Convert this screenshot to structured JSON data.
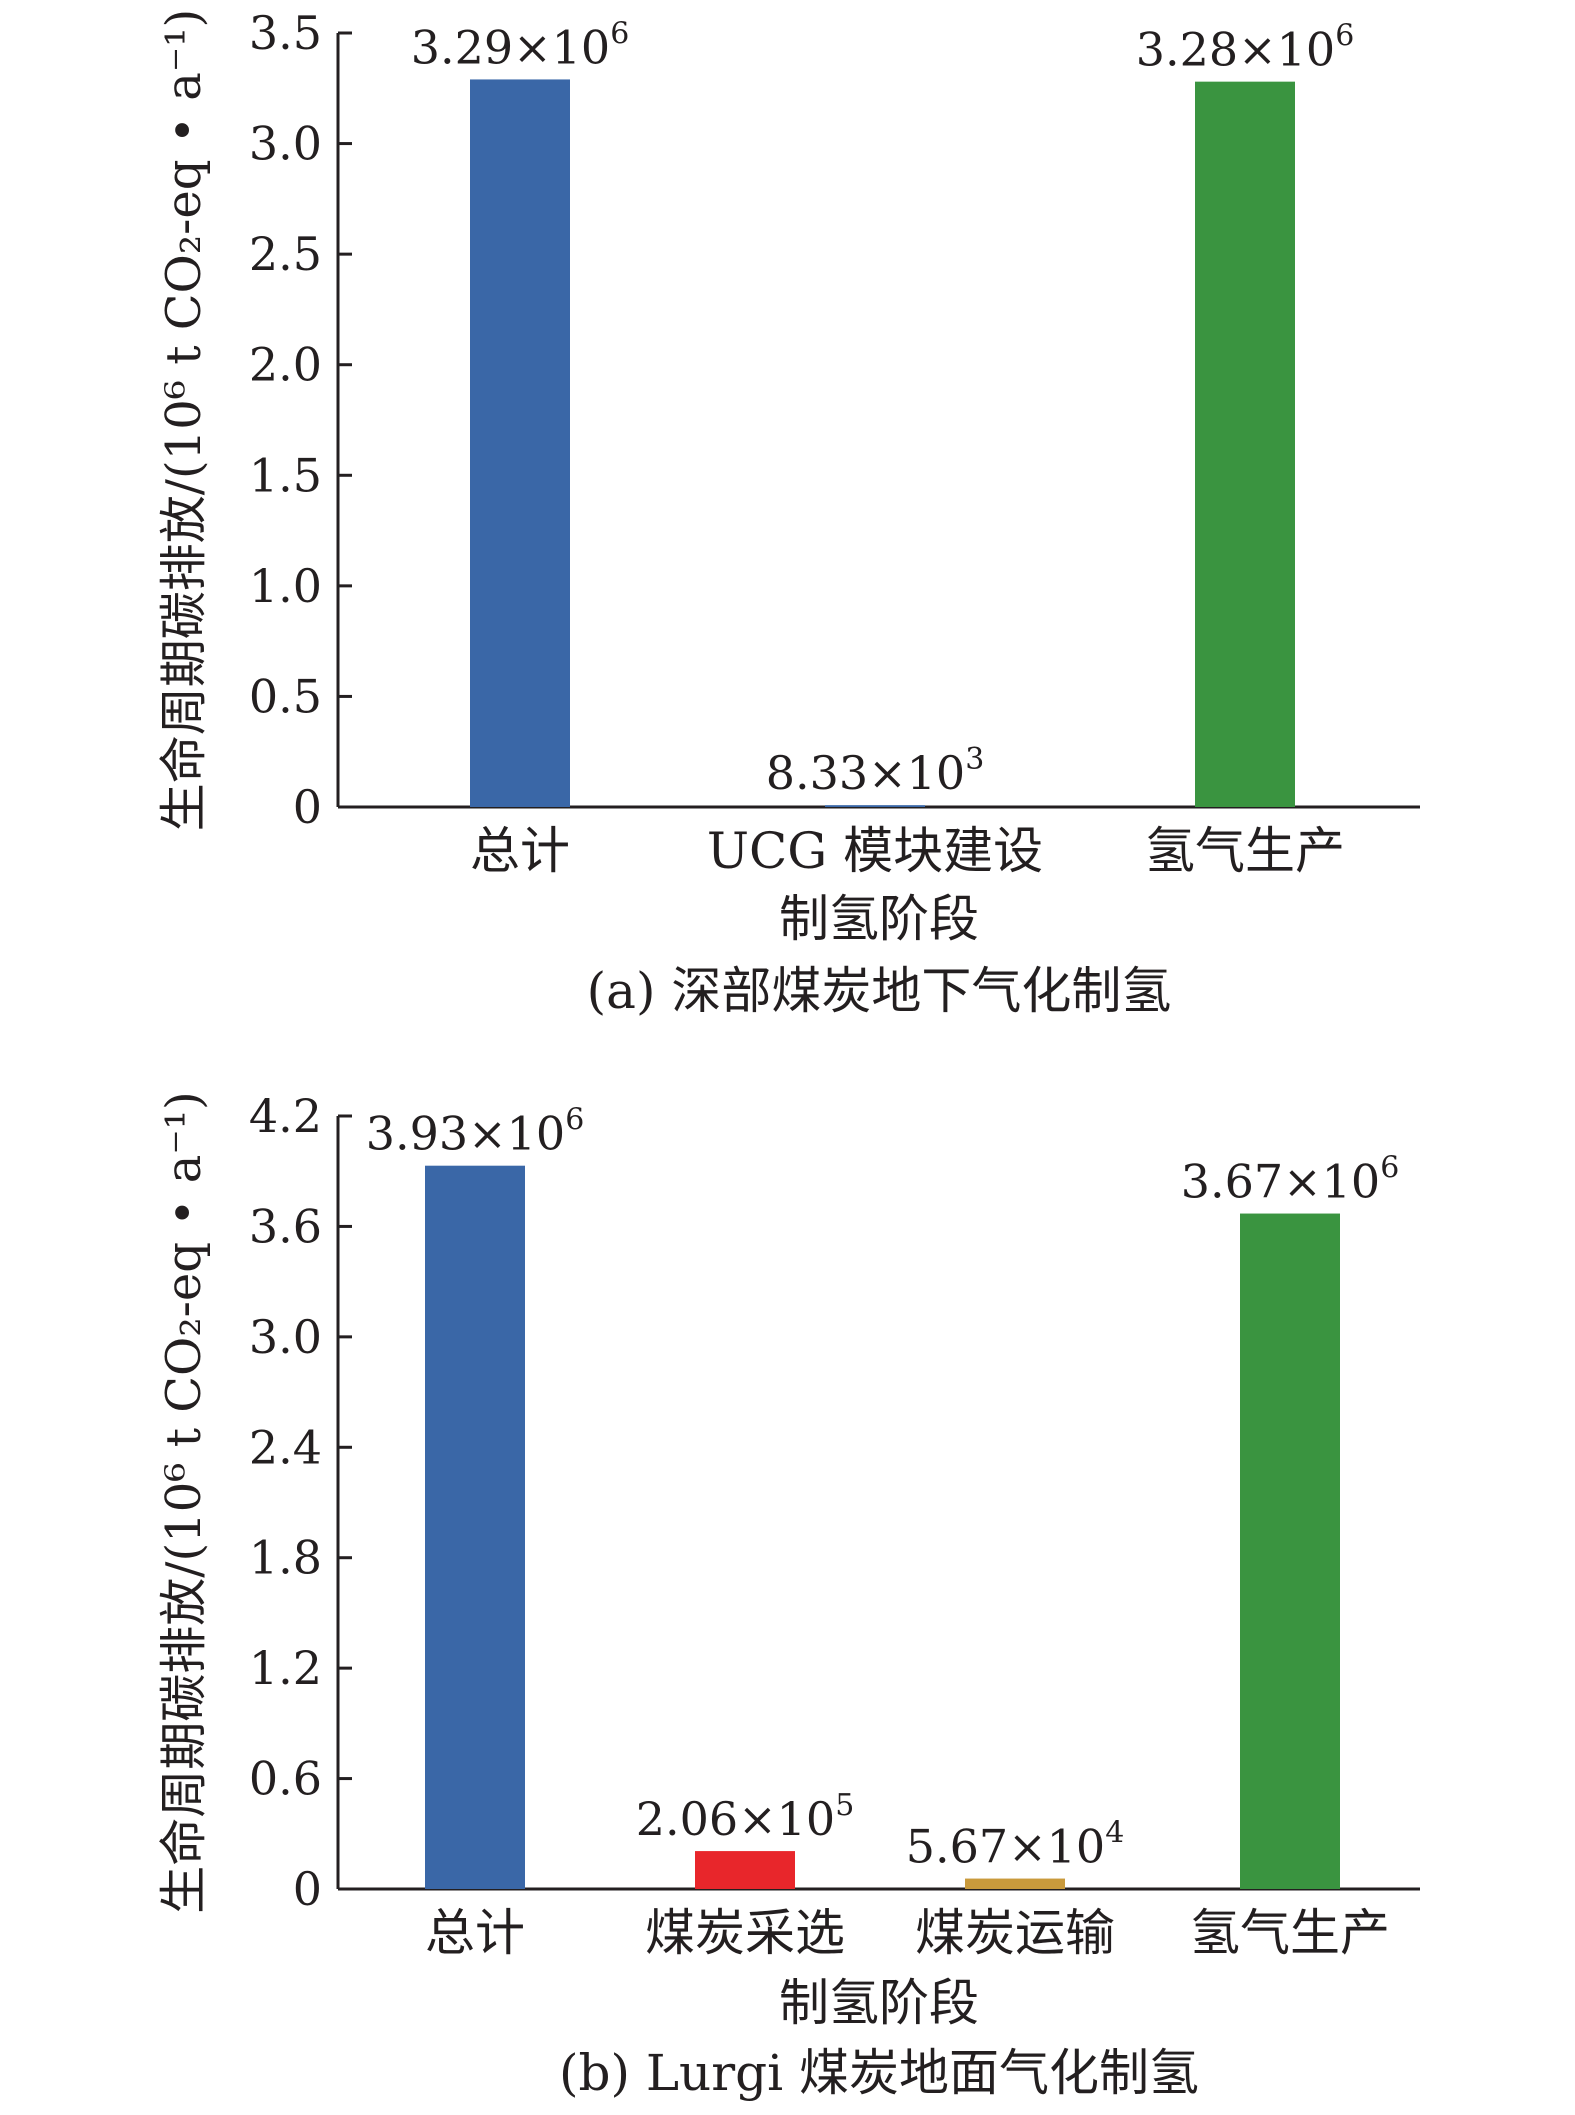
{
  "chart_data": [
    {
      "type": "bar",
      "title": "(a) 深部煤炭地下气化制氢",
      "xlabel": "制氢阶段",
      "ylabel": "生命周期碳排放/(10⁶ t CO₂-eq • a⁻¹)",
      "categories": [
        "总计",
        "UCG 模块建设",
        "氢气生产"
      ],
      "values": [
        3.29,
        0.00833,
        3.28
      ],
      "data_labels": [
        {
          "base": "3.29×10",
          "exp": "6"
        },
        {
          "base": "8.33×10",
          "exp": "3"
        },
        {
          "base": "3.28×10",
          "exp": "6"
        }
      ],
      "colors": [
        "#3a67a7",
        "#3a67a7",
        "#3a9440"
      ],
      "ylim": [
        0,
        3.5
      ],
      "yticks": [
        "0",
        "0.5",
        "1.0",
        "1.5",
        "2.0",
        "2.5",
        "3.0",
        "3.5"
      ],
      "grid": false
    },
    {
      "type": "bar",
      "title": "(b) Lurgi 煤炭地面气化制氢",
      "xlabel": "制氢阶段",
      "ylabel": "生命周期碳排放/(10⁶ t CO₂-eq • a⁻¹)",
      "categories": [
        "总计",
        "煤炭采选",
        "煤炭运输",
        "氢气生产"
      ],
      "values": [
        3.93,
        0.206,
        0.0567,
        3.67
      ],
      "data_labels": [
        {
          "base": "3.93×10",
          "exp": "6"
        },
        {
          "base": "2.06×10",
          "exp": "5"
        },
        {
          "base": "5.67×10",
          "exp": "4"
        },
        {
          "base": "3.67×10",
          "exp": "6"
        }
      ],
      "colors": [
        "#3a67a7",
        "#e8262b",
        "#c99a3c",
        "#3a9440"
      ],
      "ylim": [
        0,
        4.2
      ],
      "yticks": [
        "0",
        "0.6",
        "1.2",
        "1.8",
        "2.4",
        "3.0",
        "3.6",
        "4.2"
      ],
      "grid": false
    }
  ]
}
